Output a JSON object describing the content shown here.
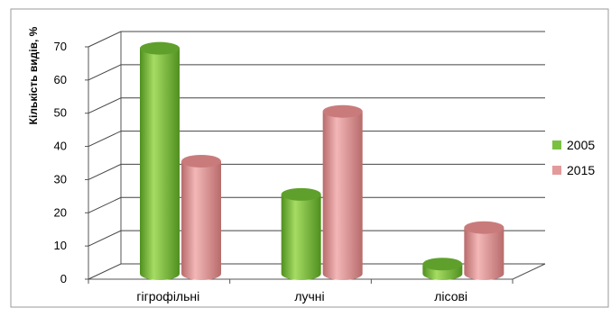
{
  "chart_data": {
    "type": "bar",
    "title": "",
    "xlabel": "",
    "ylabel": "Кількість видів, %",
    "ylim": [
      0,
      70
    ],
    "yticks": [
      0,
      10,
      20,
      30,
      40,
      50,
      60,
      70
    ],
    "categories": [
      "гігрофільні",
      "лучні",
      "лісові"
    ],
    "series": [
      {
        "name": "2005",
        "values": [
          69,
          25,
          4
        ],
        "color": "#7ac142"
      },
      {
        "name": "2015",
        "values": [
          35,
          50,
          15
        ],
        "color": "#e39a9a"
      }
    ],
    "grid": true,
    "legend_position": "right"
  }
}
